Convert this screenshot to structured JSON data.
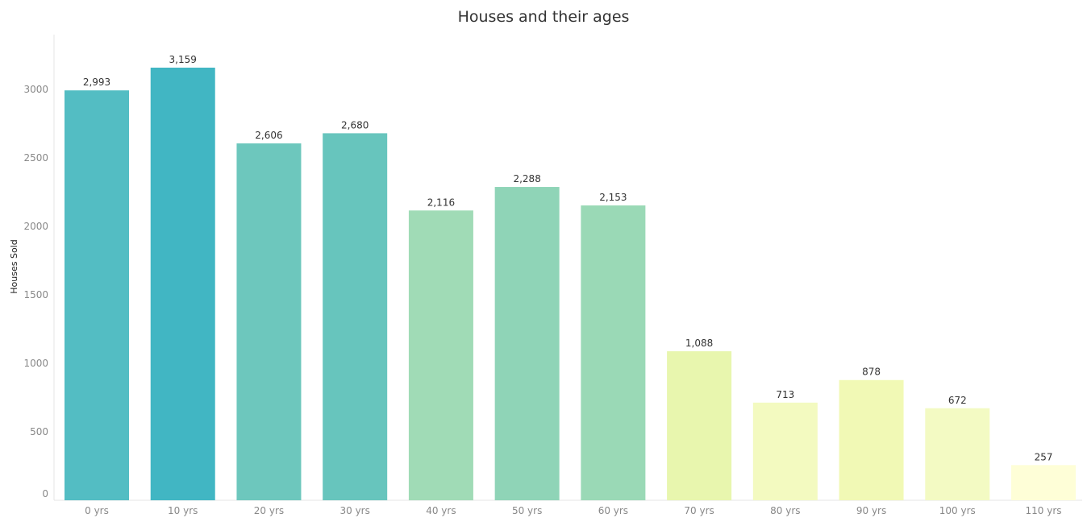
{
  "chart_data": {
    "type": "bar",
    "title": "Houses and their ages",
    "ylabel": "Houses Sold",
    "xlabel": "",
    "categories": [
      "0 yrs",
      "10 yrs",
      "20 yrs",
      "30 yrs",
      "40 yrs",
      "50 yrs",
      "60 yrs",
      "70 yrs",
      "80 yrs",
      "90 yrs",
      "100 yrs",
      "110 yrs"
    ],
    "values": [
      2993,
      3159,
      2606,
      2680,
      2116,
      2288,
      2153,
      1088,
      713,
      878,
      672,
      257
    ],
    "data_labels": [
      "2,993",
      "3,159",
      "2,606",
      "2,680",
      "2,116",
      "2,288",
      "2,153",
      "1,088",
      "713",
      "878",
      "672",
      "257"
    ],
    "colors": [
      "#53bdc3",
      "#41b6c3",
      "#6dc7bd",
      "#67c5bd",
      "#a0dbb6",
      "#8fd4b7",
      "#9ad9b6",
      "#e8f6ae",
      "#f3fac0",
      "#f1f9b5",
      "#f3fac3",
      "#fefed7"
    ],
    "yticks": [
      0,
      500,
      1000,
      1500,
      2000,
      2500,
      3000
    ],
    "ytick_labels": [
      "0",
      "500",
      "1000",
      "1500",
      "2000",
      "2500",
      "3000"
    ],
    "ylim": [
      0,
      3400
    ],
    "grid": false,
    "legend": "none"
  }
}
